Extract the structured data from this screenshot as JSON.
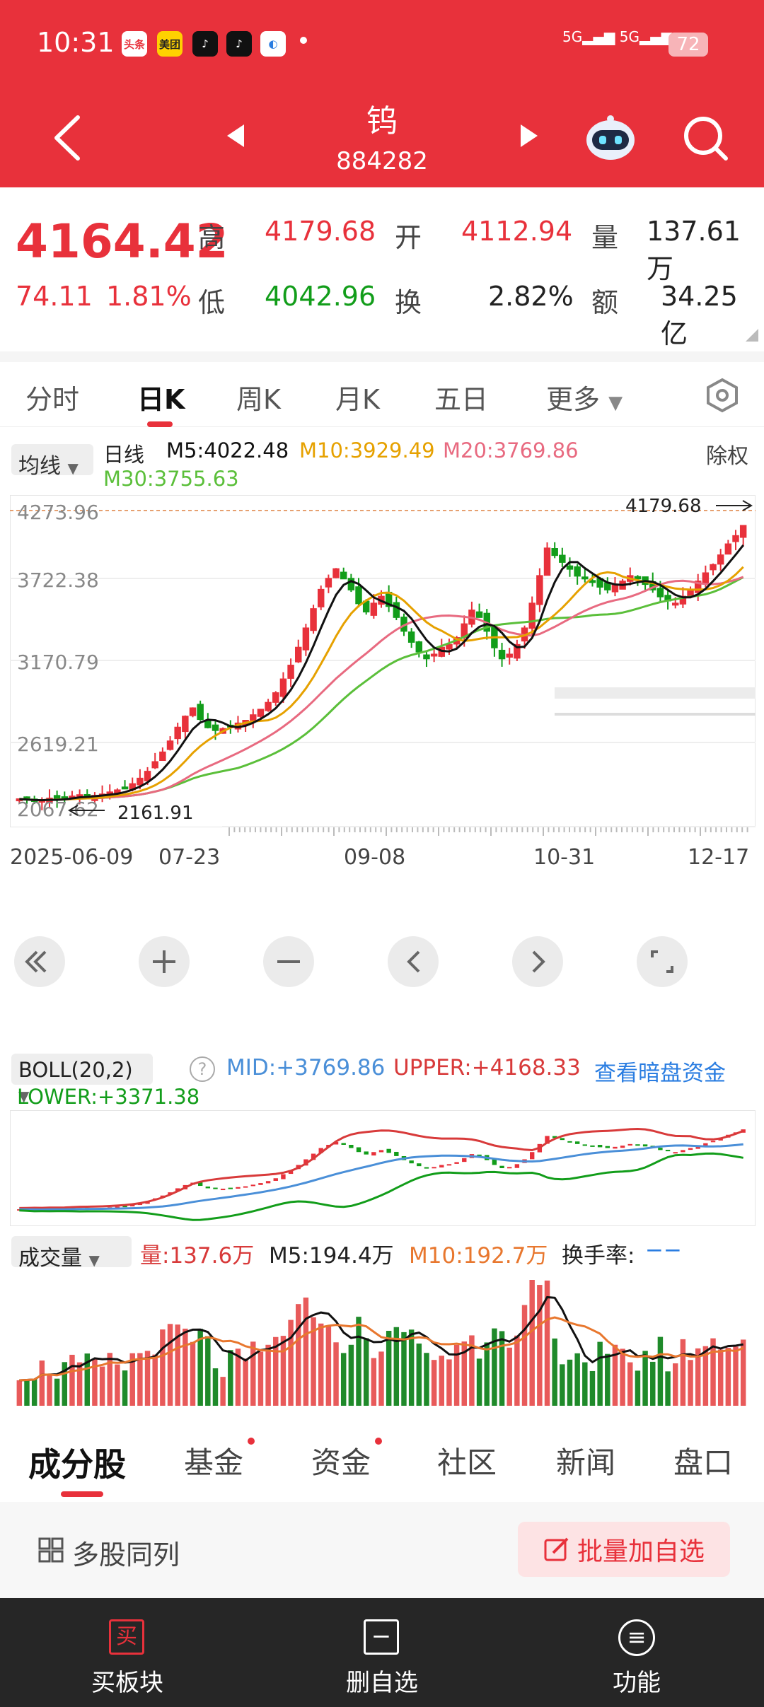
{
  "status": {
    "time": "10:31",
    "battery": "72",
    "signal": "5G",
    "apps": [
      "头条",
      "美团"
    ]
  },
  "header": {
    "title": "钨",
    "code": "884282"
  },
  "quote": {
    "price": "4164.42",
    "change": "74.11",
    "change_pct": "1.81%",
    "high_label": "高",
    "high": "4179.68",
    "open_label": "开",
    "open": "4112.94",
    "volume_label": "量",
    "volume": "137.61万",
    "low_label": "低",
    "low": "4042.96",
    "turnover_label": "换",
    "turnover": "2.82%",
    "amount_label": "额",
    "amount": "34.25亿"
  },
  "tabs": [
    {
      "label": "分时"
    },
    {
      "label": "日K"
    },
    {
      "label": "周K"
    },
    {
      "label": "月K"
    },
    {
      "label": "五日"
    },
    {
      "label": "更多"
    }
  ],
  "ma_bar": {
    "selector": "均线",
    "period": "日线",
    "m5": "M5:4022.48",
    "m10": "M10:3929.49",
    "m20": "M20:3769.86",
    "m30": "M30:3755.63",
    "adjust": "除权"
  },
  "price_axis": [
    "4273.96",
    "3722.38",
    "3170.79",
    "2619.21",
    "2067.62"
  ],
  "price_markers": {
    "max": "4179.68",
    "min": "2161.91"
  },
  "date_axis": [
    "2025-06-09",
    "07-23",
    "09-08",
    "10-31",
    "12-17"
  ],
  "boll": {
    "selector": "BOLL(20,2)",
    "mid": "MID:+3769.86",
    "upper": "UPPER:+4168.33",
    "lower": "LOWER:+3371.38",
    "link": "查看暗盘资金"
  },
  "vol": {
    "selector": "成交量",
    "amount": "量:137.6万",
    "m5": "M5:194.4万",
    "m10": "M10:192.7万",
    "turnover": "换手率:",
    "turnover_val": "−−"
  },
  "sections": [
    {
      "label": "成分股"
    },
    {
      "label": "基金"
    },
    {
      "label": "资金"
    },
    {
      "label": "社区"
    },
    {
      "label": "新闻"
    },
    {
      "label": "盘口"
    }
  ],
  "multi": {
    "label": "多股同列",
    "button": "批量加自选"
  },
  "toolbar": [
    {
      "label": "买板块",
      "glyph": "买"
    },
    {
      "label": "删自选",
      "glyph": "−"
    },
    {
      "label": "功能",
      "glyph": "≡"
    }
  ],
  "colors": {
    "red": "#e8313b",
    "green": "#129d1a",
    "m5": "#111111",
    "m10": "#e6a100",
    "m20": "#e86a80",
    "m30": "#5bbf3a",
    "boll_mid": "#4a8fd8"
  },
  "chart_data": {
    "type": "candlestick",
    "x_range": [
      "2025-06-09",
      "12-17"
    ],
    "ylim": [
      2067.62,
      4273.96
    ],
    "last": {
      "open": 4112.94,
      "high": 4179.68,
      "low": 4042.96,
      "close": 4164.42
    },
    "close_series": [
      2180,
      2175,
      2165,
      2170,
      2185,
      2180,
      2190,
      2200,
      2210,
      2200,
      2205,
      2215,
      2230,
      2245,
      2260,
      2290,
      2330,
      2380,
      2450,
      2520,
      2600,
      2700,
      2780,
      2840,
      2760,
      2700,
      2680,
      2690,
      2710,
      2730,
      2750,
      2790,
      2830,
      2880,
      2950,
      3050,
      3150,
      3280,
      3420,
      3560,
      3700,
      3780,
      3850,
      3780,
      3700,
      3600,
      3540,
      3600,
      3650,
      3580,
      3500,
      3400,
      3320,
      3250,
      3200,
      3230,
      3280,
      3300,
      3350,
      3450,
      3550,
      3500,
      3400,
      3280,
      3200,
      3230,
      3300,
      3420,
      3600,
      3800,
      4000,
      3950,
      3900,
      3850,
      3800,
      3780,
      3760,
      3720,
      3700,
      3730,
      3760,
      3800,
      3780,
      3740,
      3700,
      3650,
      3620,
      3600,
      3650,
      3700,
      3760,
      3820,
      3880,
      3950,
      4030,
      4090,
      4164
    ]
  }
}
